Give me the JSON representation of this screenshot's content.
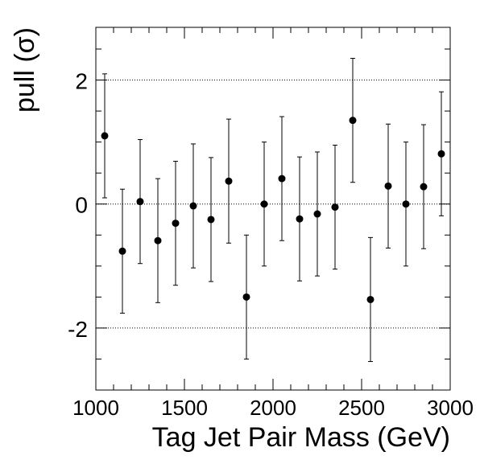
{
  "chart_data": {
    "type": "scatter",
    "title": "",
    "xlabel": "Tag Jet Pair Mass (GeV)",
    "ylabel": "pull (σ)",
    "xlim": [
      1000,
      3000
    ],
    "ylim": [
      -3.0,
      2.85
    ],
    "x_ticks": [
      1000,
      1500,
      2000,
      2500,
      3000
    ],
    "y_ticks": [
      -2,
      0,
      2
    ],
    "gridlines_y": [
      -2,
      0,
      2
    ],
    "grid_style": "dotted-horizontal",
    "error_bars": true,
    "marker": "filled-circle",
    "color": "#000000",
    "points": [
      {
        "x": 1050,
        "y": 1.1,
        "err": 1.0
      },
      {
        "x": 1150,
        "y": -0.76,
        "err": 1.0
      },
      {
        "x": 1250,
        "y": 0.04,
        "err": 1.0
      },
      {
        "x": 1350,
        "y": -0.59,
        "err": 1.0
      },
      {
        "x": 1450,
        "y": -0.31,
        "err": 1.0
      },
      {
        "x": 1550,
        "y": -0.03,
        "err": 1.0
      },
      {
        "x": 1650,
        "y": -0.25,
        "err": 1.0
      },
      {
        "x": 1750,
        "y": 0.37,
        "err": 1.0
      },
      {
        "x": 1850,
        "y": -1.5,
        "err": 1.0
      },
      {
        "x": 1950,
        "y": 0.0,
        "err": 1.0
      },
      {
        "x": 2050,
        "y": 0.41,
        "err": 1.0
      },
      {
        "x": 2150,
        "y": -0.24,
        "err": 1.0
      },
      {
        "x": 2250,
        "y": -0.16,
        "err": 1.0
      },
      {
        "x": 2350,
        "y": -0.05,
        "err": 1.0
      },
      {
        "x": 2450,
        "y": 1.35,
        "err": 1.0
      },
      {
        "x": 2550,
        "y": -1.54,
        "err": 1.0
      },
      {
        "x": 2650,
        "y": 0.29,
        "err": 1.0
      },
      {
        "x": 2750,
        "y": 0.0,
        "err": 1.0
      },
      {
        "x": 2850,
        "y": 0.28,
        "err": 1.0
      },
      {
        "x": 2950,
        "y": 0.81,
        "err": 1.0
      }
    ]
  }
}
